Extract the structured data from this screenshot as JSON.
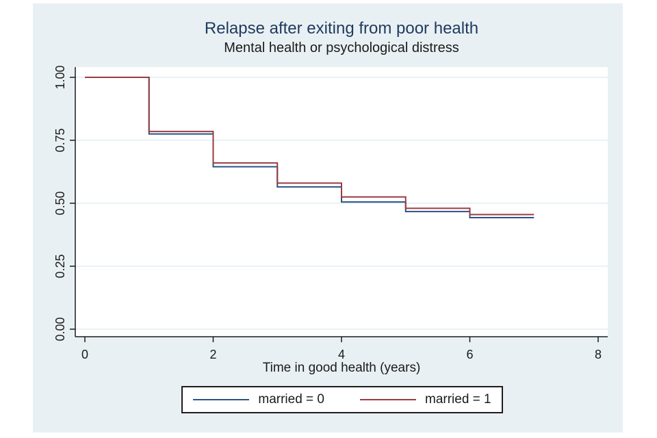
{
  "chart_data": {
    "type": "line",
    "subtype": "kaplan-meier-step",
    "title": "Relapse after exiting from poor health",
    "subtitle": "Mental health or psychological distress",
    "xlabel": "Time in good health (years)",
    "ylabel": "",
    "grid": "horizontal",
    "legend_position": "bottom",
    "x_axis": {
      "min": 0,
      "max": 8,
      "ticks": [
        0,
        2,
        4,
        6,
        8
      ]
    },
    "y_axis": {
      "min": 0,
      "max": 1,
      "ticks": [
        {
          "value": 0.0,
          "label": "0.00"
        },
        {
          "value": 0.25,
          "label": "0.25"
        },
        {
          "value": 0.5,
          "label": "0.50"
        },
        {
          "value": 0.75,
          "label": "0.75"
        },
        {
          "value": 1.0,
          "label": "1.00"
        }
      ]
    },
    "series": [
      {
        "name": "married = 0",
        "color": "#2b5384",
        "t_end": 7,
        "steps": [
          {
            "t": 0,
            "s": 1.0
          },
          {
            "t": 1,
            "s": 0.775
          },
          {
            "t": 2,
            "s": 0.645
          },
          {
            "t": 3,
            "s": 0.565
          },
          {
            "t": 4,
            "s": 0.505
          },
          {
            "t": 5,
            "s": 0.467
          },
          {
            "t": 6,
            "s": 0.443
          }
        ]
      },
      {
        "name": "married = 1",
        "color": "#9a3b42",
        "t_end": 7,
        "steps": [
          {
            "t": 0,
            "s": 1.0
          },
          {
            "t": 1,
            "s": 0.785
          },
          {
            "t": 2,
            "s": 0.66
          },
          {
            "t": 3,
            "s": 0.58
          },
          {
            "t": 4,
            "s": 0.525
          },
          {
            "t": 5,
            "s": 0.48
          },
          {
            "t": 6,
            "s": 0.455
          }
        ]
      }
    ]
  },
  "style": {
    "figure_background": "#e9f0f3",
    "plot_background": "#ffffff",
    "gridline_color": "#e2edf4",
    "axis_color": "#1a1a1a",
    "title_color": "#1e3a5f",
    "text_color": "#1a1a1a"
  }
}
